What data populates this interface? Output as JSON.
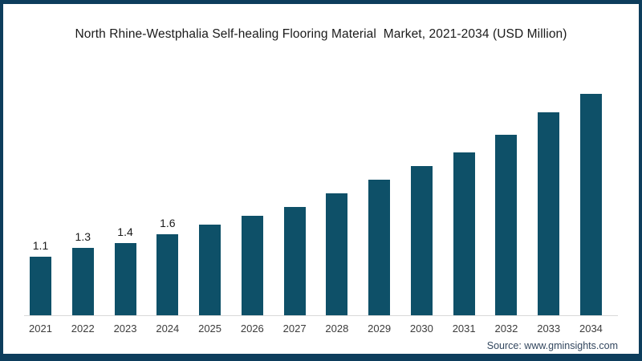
{
  "chart_data": {
    "type": "bar",
    "title": "North Rhine-Westphalia Self-healing Flooring Material  Market, 2021-2034 (USD Million)",
    "categories": [
      "2021",
      "2022",
      "2023",
      "2024",
      "2025",
      "2026",
      "2027",
      "2028",
      "2029",
      "2030",
      "2031",
      "2032",
      "2033",
      "2034"
    ],
    "values": [
      1.1,
      1.3,
      1.4,
      1.6,
      1.8,
      2.0,
      2.2,
      2.5,
      2.8,
      3.1,
      3.4,
      3.8,
      4.3,
      4.7
    ],
    "data_labels": [
      "1.1",
      "1.3",
      "1.4",
      "1.6",
      "",
      "",
      "",
      "",
      "",
      "",
      "",
      "",
      "",
      ""
    ],
    "xlabel": "",
    "ylabel": "",
    "ylim": [
      0,
      5
    ],
    "grid": false,
    "legend": false,
    "source": "Source: www.gminsights.com"
  },
  "colors": {
    "bar": "#0e5068",
    "frame_border": "#0d3d5c",
    "axis_line": "#d9d9d9",
    "title_text": "#1a1a1a",
    "value_label_text": "#1a1a1a",
    "year_label_text": "#3c3c3c",
    "source_text": "#33475f"
  }
}
